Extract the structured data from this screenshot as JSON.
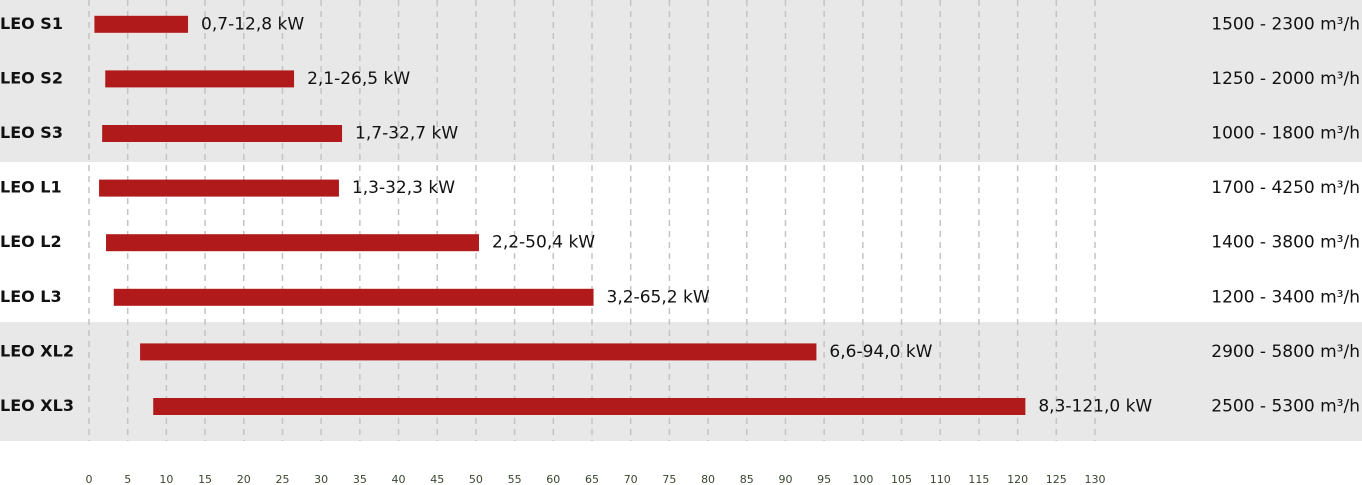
{
  "chart_data": {
    "type": "range-bar",
    "categories": [
      "LEO S1",
      "LEO S2",
      "LEO S3",
      "LEO L1",
      "LEO L2",
      "LEO L3",
      "LEO XL2",
      "LEO XL3"
    ],
    "values": [
      [
        0.7,
        12.8
      ],
      [
        2.1,
        26.5
      ],
      [
        1.7,
        32.7
      ],
      [
        1.3,
        32.3
      ],
      [
        2.2,
        50.4
      ],
      [
        3.2,
        65.2
      ],
      [
        6.6,
        94.0
      ],
      [
        8.3,
        121.0
      ]
    ],
    "value_labels": [
      "0,7-12,8 kW",
      "2,1-26,5 kW",
      "1,7-32,7 kW",
      "1,3-32,3 kW",
      "2,2-50,4 kW",
      "3,2-65,2 kW",
      "6,6-94,0 kW",
      "8,3-121,0 kW"
    ],
    "annotations": [
      "1500 - 2300 m³/h",
      "1250 - 2000 m³/h",
      "1000 - 1800 m³/h",
      "1700 - 4250 m³/h",
      "1400 - 3800 m³/h",
      "1200 - 3400 m³/h",
      "2900 - 5800 m³/h",
      "2500 - 5300 m³/h"
    ],
    "color": "#b11a1a",
    "xlim": [
      0,
      130
    ],
    "xticks": [
      0,
      5,
      10,
      15,
      20,
      25,
      30,
      35,
      40,
      45,
      50,
      55,
      60,
      65,
      70,
      75,
      80,
      85,
      90,
      95,
      100,
      105,
      110,
      115,
      120,
      125,
      130
    ],
    "grid": true
  }
}
